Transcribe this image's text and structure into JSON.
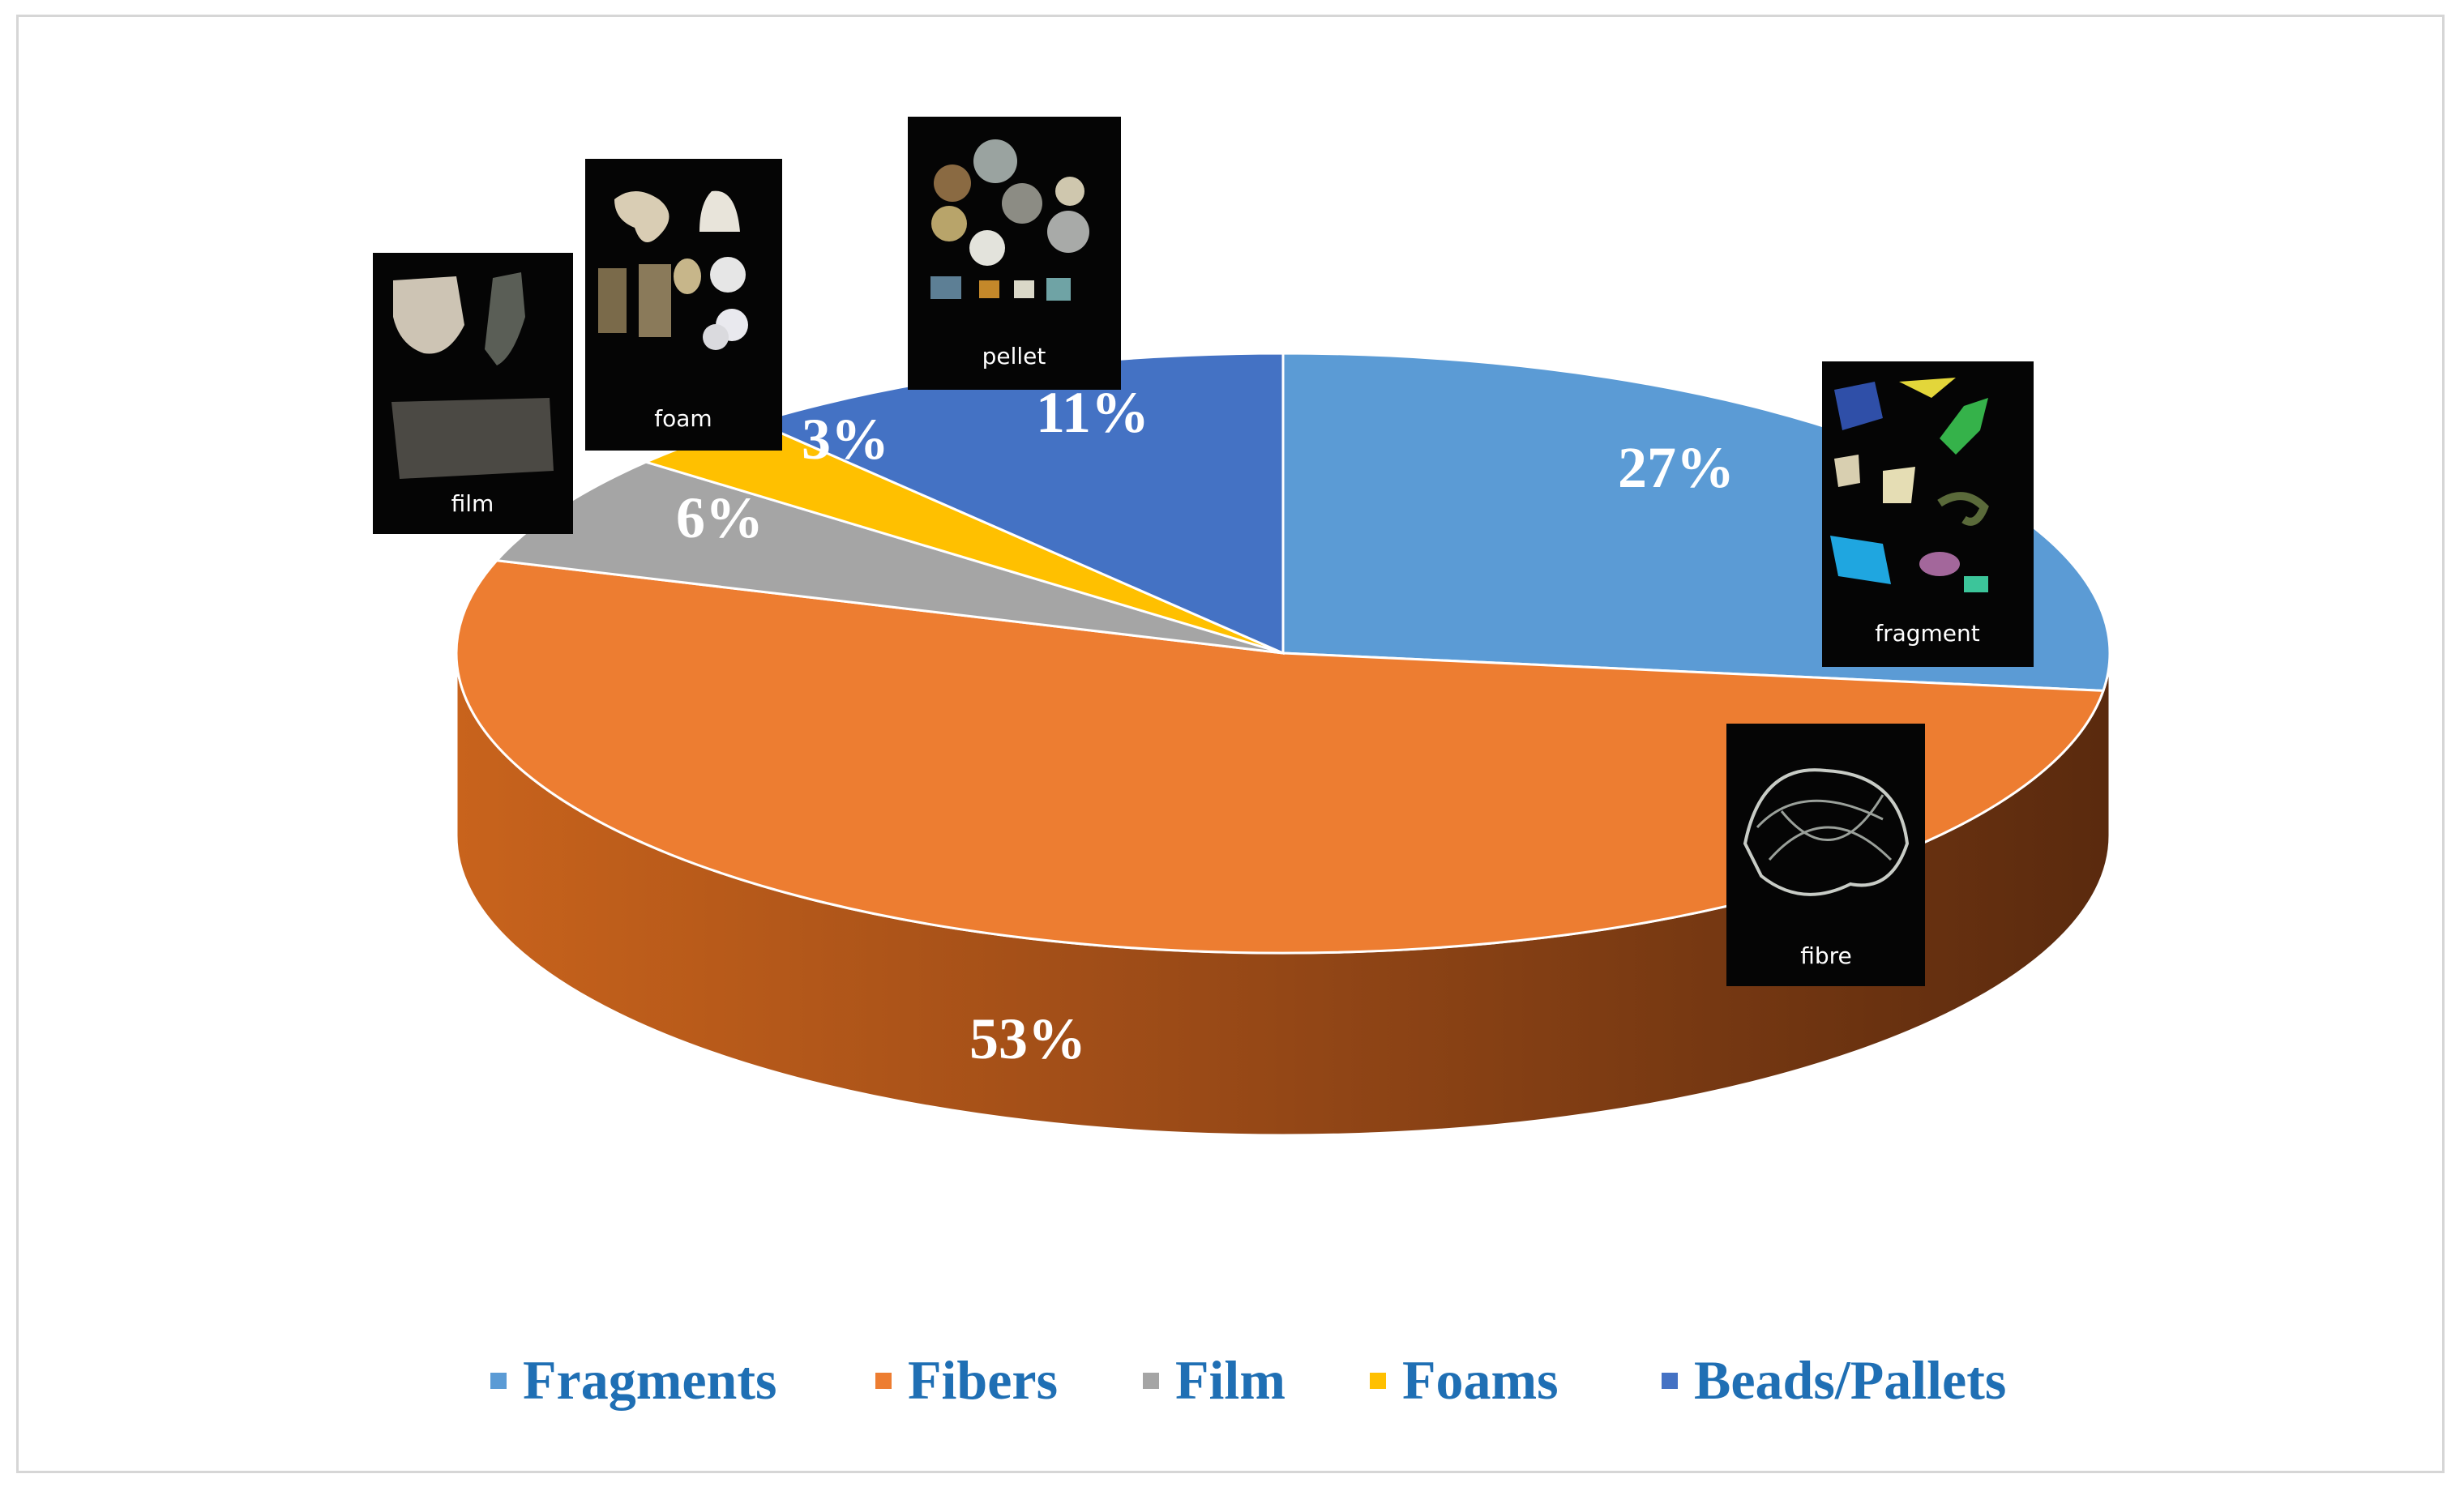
{
  "chart_data": {
    "type": "pie",
    "title": "",
    "style": "3d",
    "labels_format": "percent",
    "legend_position": "bottom",
    "slices": [
      {
        "name": "Fragments",
        "value": 27,
        "label": "27%",
        "color": "#5b9bd5"
      },
      {
        "name": "Fibers",
        "value": 53,
        "label": "53%",
        "color": "#ed7d31"
      },
      {
        "name": "Film",
        "value": 6,
        "label": "6%",
        "color": "#a5a5a5"
      },
      {
        "name": "Foams",
        "value": 3,
        "label": "3%",
        "color": "#ffc000"
      },
      {
        "name": "Beads/Pallets",
        "value": 11,
        "label": "11%",
        "color": "#4472c4"
      }
    ],
    "side_color": "#c55a11",
    "side_shadow": "#5a2a0e",
    "legend_text_color": "#1f6fb4"
  },
  "thumbnails": [
    {
      "label": "pellet"
    },
    {
      "label": "foam"
    },
    {
      "label": "film"
    },
    {
      "label": "fragment"
    },
    {
      "label": "fibre"
    }
  ]
}
